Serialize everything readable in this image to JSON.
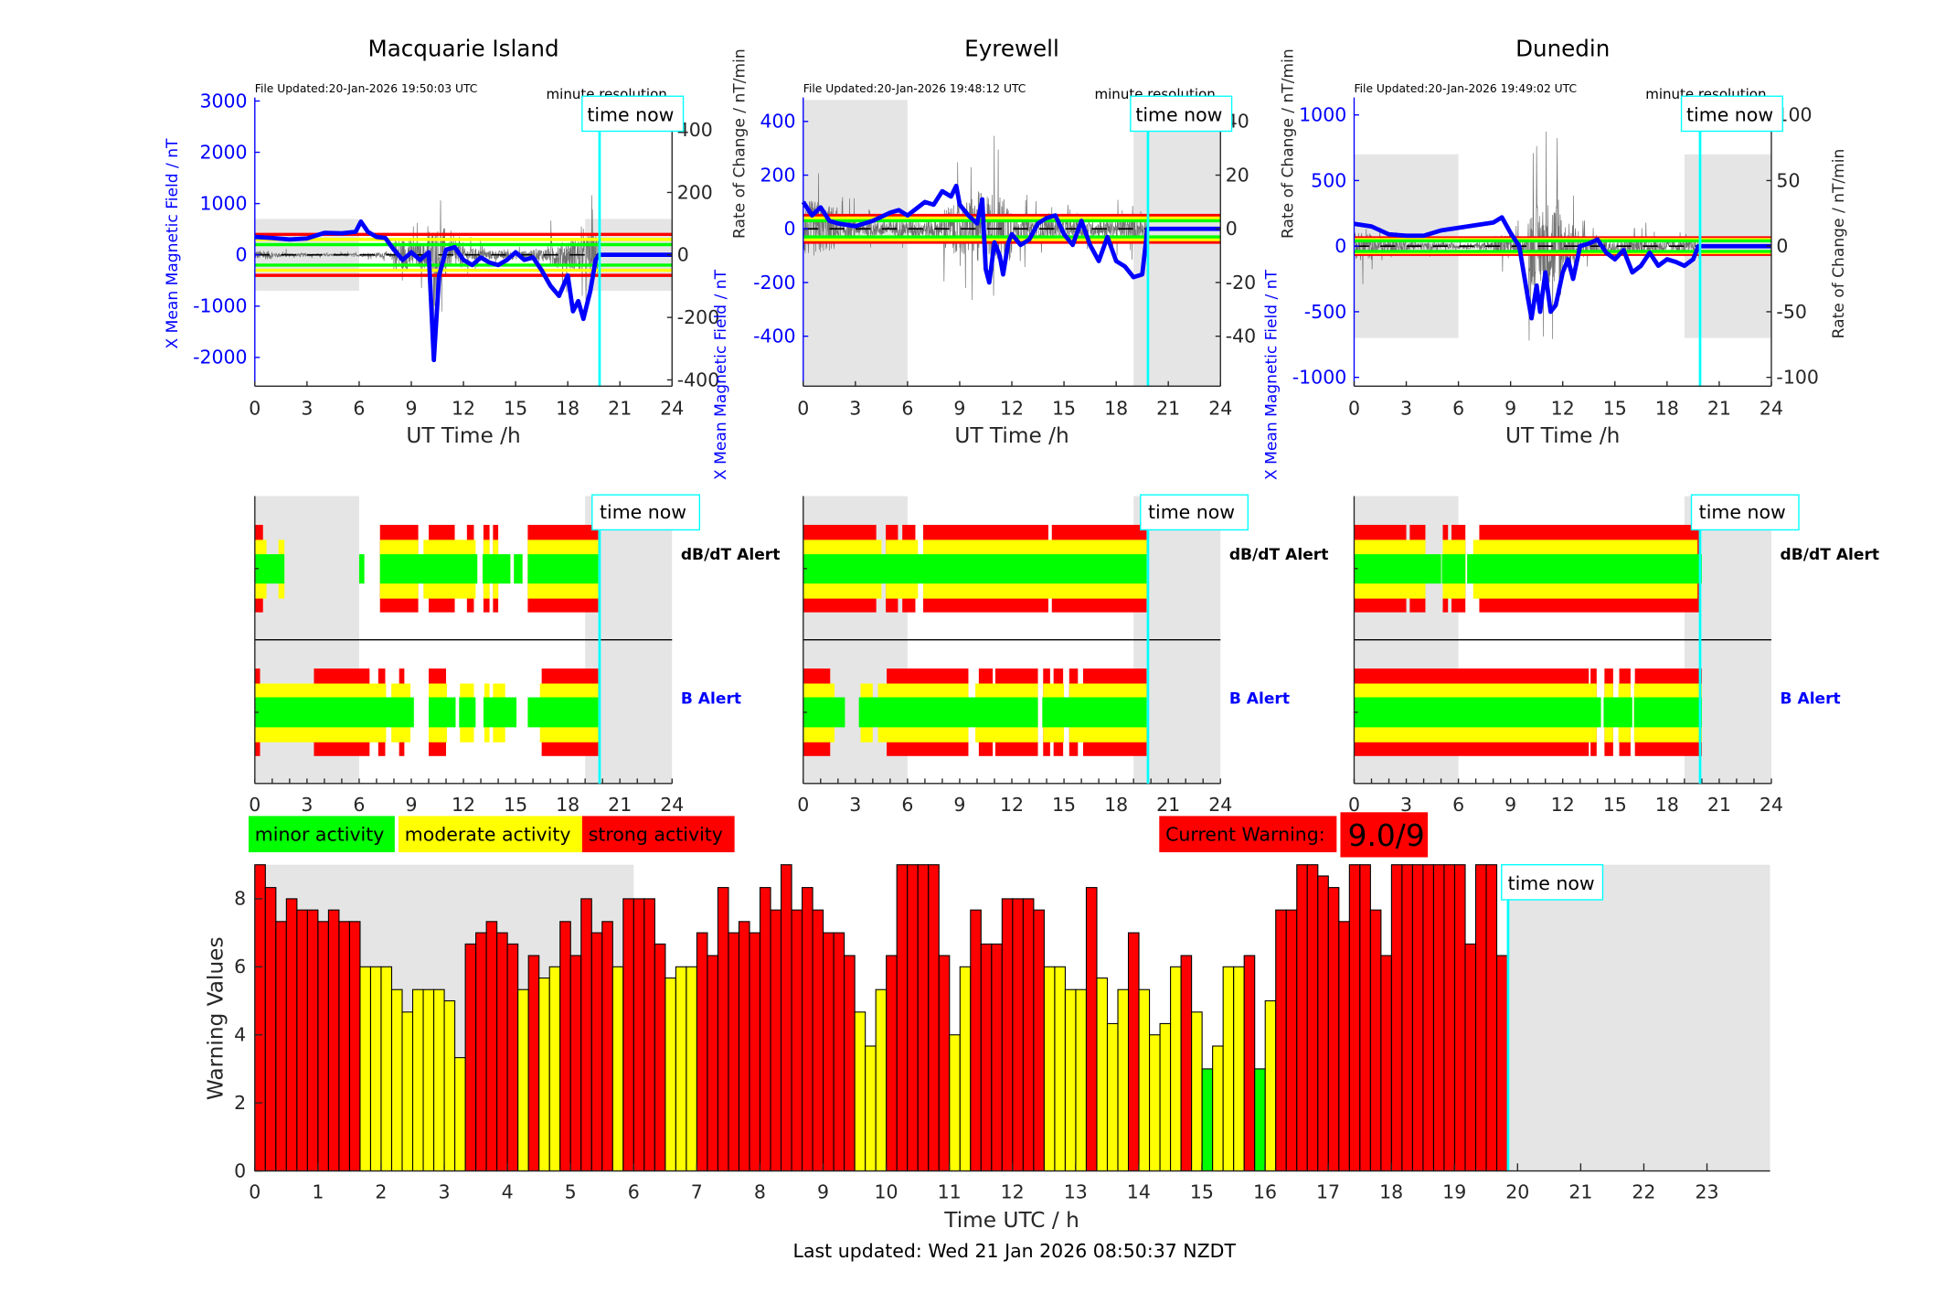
{
  "colors": {
    "minor": "#00ff00",
    "moderate": "#ffff00",
    "strong": "#ff0000",
    "field": "#0000ff",
    "time_now": "#00ffff",
    "night": "#e5e5e5",
    "dbdt": "#707070"
  },
  "x_ticks": [
    "0",
    "3",
    "6",
    "9",
    "12",
    "15",
    "18",
    "21",
    "24"
  ],
  "alert_labels": {
    "dbdt": "dB/dT Alert",
    "b": "B Alert"
  },
  "stations": [
    {
      "name": "Macquarie Island",
      "file_updated": "File Updated:20-Jan-2026 19:50:03 UTC",
      "resolution": "minute resolution",
      "time_now_label": "time now",
      "left_label": "X Mean Magnetic Field / nT",
      "right_label": "Rate of Change / nT/min",
      "xlabel": "UT Time /h",
      "left_range": [
        -2560,
        3020
      ],
      "right_range": [
        -420,
        496
      ],
      "left_ticks": [
        "-2000",
        "-1000",
        "0",
        "1000",
        "2000",
        "3000"
      ],
      "right_ticks": [
        "-400",
        "-200",
        "0",
        "200",
        "400"
      ],
      "thresholds": {
        "red": 400,
        "yellow": 300,
        "green": 200
      },
      "night_shade": [
        [
          0,
          6
        ],
        [
          19,
          24
        ]
      ],
      "shade_limit": 700,
      "time_now": 19.83,
      "x_field": [
        [
          0,
          350
        ],
        [
          1,
          330
        ],
        [
          2,
          300
        ],
        [
          3,
          320
        ],
        [
          4,
          430
        ],
        [
          5,
          420
        ],
        [
          5.8,
          450
        ],
        [
          6.1,
          650
        ],
        [
          6.5,
          450
        ],
        [
          7,
          350
        ],
        [
          7.5,
          330
        ],
        [
          8,
          100
        ],
        [
          8.5,
          -100
        ],
        [
          9,
          50
        ],
        [
          9.5,
          -100
        ],
        [
          10,
          50
        ],
        [
          10.3,
          -2050
        ],
        [
          10.6,
          -400
        ],
        [
          11,
          100
        ],
        [
          11.5,
          150
        ],
        [
          12,
          -100
        ],
        [
          12.5,
          -200
        ],
        [
          13,
          -50
        ],
        [
          13.5,
          -150
        ],
        [
          14,
          -200
        ],
        [
          14.5,
          -100
        ],
        [
          15,
          50
        ],
        [
          15.5,
          -100
        ],
        [
          16,
          -50
        ],
        [
          16.5,
          -300
        ],
        [
          17,
          -600
        ],
        [
          17.5,
          -800
        ],
        [
          18,
          -400
        ],
        [
          18.3,
          -1100
        ],
        [
          18.6,
          -900
        ],
        [
          18.9,
          -1250
        ],
        [
          19.3,
          -700
        ],
        [
          19.6,
          -100
        ],
        [
          19.8,
          0
        ],
        [
          24,
          0
        ]
      ],
      "dbdt_envelope": [
        40,
        20,
        15,
        12,
        12,
        12,
        15,
        20,
        150,
        120,
        250,
        120,
        60,
        40,
        40,
        40,
        60,
        120,
        150,
        200
      ],
      "dbdt_alert": {
        "red": [
          [
            0,
            0.47
          ],
          [
            7.2,
            9.4
          ],
          [
            10,
            11.5
          ],
          [
            12.2,
            12.6
          ],
          [
            13.15,
            13.5
          ],
          [
            13.7,
            14
          ],
          [
            15.7,
            19.75
          ]
        ],
        "yellow": [
          [
            0,
            0.67
          ],
          [
            1.36,
            1.7
          ],
          [
            7.2,
            9.4
          ],
          [
            9.7,
            12.7
          ],
          [
            13.15,
            13.5
          ],
          [
            13.7,
            14
          ],
          [
            15.7,
            19.75
          ]
        ],
        "green": [
          [
            0,
            1.7
          ],
          [
            6,
            6.3
          ],
          [
            7.2,
            12.8
          ],
          [
            13.1,
            14.7
          ],
          [
            14.9,
            15.4
          ],
          [
            15.7,
            19.75
          ]
        ]
      },
      "b_alert": {
        "red": [
          [
            0,
            0.3
          ],
          [
            3.4,
            6.6
          ],
          [
            7.1,
            7.5
          ],
          [
            8.3,
            8.6
          ],
          [
            10,
            11
          ],
          [
            16.5,
            19.75
          ]
        ],
        "yellow": [
          [
            0,
            7.55
          ],
          [
            7.85,
            8.95
          ],
          [
            10,
            11.05
          ],
          [
            11.8,
            12.6
          ],
          [
            13.2,
            13.5
          ],
          [
            13.7,
            14.4
          ],
          [
            16.4,
            19.75
          ]
        ],
        "green": [
          [
            0,
            9.15
          ],
          [
            10,
            11.55
          ],
          [
            11.75,
            12.7
          ],
          [
            13.15,
            15.05
          ],
          [
            15.7,
            19.75
          ]
        ]
      }
    },
    {
      "name": "Eyrewell",
      "file_updated": "File Updated:20-Jan-2026 19:48:12 UTC",
      "resolution": "minute resolution",
      "time_now_label": "time now",
      "left_label": "X Mean Magnetic Field / nT",
      "right_label": "Rate of Change / nT/min",
      "xlabel": "UT Time /h",
      "left_range": [
        -586,
        480
      ],
      "right_range": [
        -58.6,
        48
      ],
      "left_ticks": [
        "-400",
        "-200",
        "0",
        "200",
        "400"
      ],
      "right_ticks": [
        "-40",
        "-20",
        "0",
        "20",
        "40"
      ],
      "thresholds": {
        "red": 50,
        "yellow": 40,
        "green": 30
      },
      "night_shade": [
        [
          0,
          6
        ],
        [
          19,
          24
        ]
      ],
      "shade_limit": null,
      "time_now": 19.83,
      "x_field": [
        [
          0,
          100
        ],
        [
          0.5,
          50
        ],
        [
          1,
          80
        ],
        [
          1.5,
          30
        ],
        [
          2,
          20
        ],
        [
          3,
          10
        ],
        [
          4,
          30
        ],
        [
          5,
          60
        ],
        [
          5.5,
          70
        ],
        [
          6,
          50
        ],
        [
          7,
          100
        ],
        [
          7.5,
          90
        ],
        [
          8,
          140
        ],
        [
          8.5,
          120
        ],
        [
          8.8,
          160
        ],
        [
          9,
          90
        ],
        [
          9.5,
          50
        ],
        [
          10,
          20
        ],
        [
          10.3,
          110
        ],
        [
          10.5,
          -150
        ],
        [
          10.7,
          -200
        ],
        [
          11,
          -50
        ],
        [
          11.3,
          -100
        ],
        [
          11.5,
          -170
        ],
        [
          11.8,
          -50
        ],
        [
          12,
          -20
        ],
        [
          12.5,
          -60
        ],
        [
          13,
          -40
        ],
        [
          13.5,
          20
        ],
        [
          14,
          40
        ],
        [
          14.5,
          50
        ],
        [
          15,
          -20
        ],
        [
          15.5,
          -60
        ],
        [
          16,
          30
        ],
        [
          16.5,
          -60
        ],
        [
          17,
          -120
        ],
        [
          17.5,
          -30
        ],
        [
          18,
          -120
        ],
        [
          18.5,
          -140
        ],
        [
          19,
          -180
        ],
        [
          19.5,
          -170
        ],
        [
          19.8,
          0
        ],
        [
          24,
          0
        ]
      ],
      "dbdt_envelope": [
        30,
        25,
        12,
        8,
        8,
        8,
        10,
        10,
        25,
        30,
        40,
        35,
        15,
        12,
        10,
        10,
        8,
        10,
        12,
        12
      ],
      "dbdt_alert": {
        "red": [
          [
            0,
            4.2
          ],
          [
            4.75,
            5.45
          ],
          [
            5.7,
            6.45
          ],
          [
            6.9,
            14.1
          ],
          [
            14.3,
            19.75
          ]
        ],
        "yellow": [
          [
            0,
            4.5
          ],
          [
            4.75,
            6.6
          ],
          [
            6.9,
            19.75
          ]
        ],
        "green": [
          [
            0,
            19.75
          ]
        ]
      },
      "b_alert": {
        "red": [
          [
            0,
            1.55
          ],
          [
            4.8,
            9.5
          ],
          [
            10.1,
            10.9
          ],
          [
            11.05,
            13.5
          ],
          [
            13.8,
            14.2
          ],
          [
            14.4,
            14.95
          ],
          [
            15.3,
            15.8
          ],
          [
            16.1,
            19.75
          ]
        ],
        "yellow": [
          [
            0,
            1.8
          ],
          [
            3.3,
            4
          ],
          [
            4.3,
            9.5
          ],
          [
            9.9,
            13.5
          ],
          [
            13.8,
            15
          ],
          [
            15.3,
            19.75
          ]
        ],
        "green": [
          [
            0,
            2.4
          ],
          [
            3.2,
            13.5
          ],
          [
            13.75,
            19.75
          ]
        ]
      }
    },
    {
      "name": "Dunedin",
      "file_updated": "File Updated:20-Jan-2026 19:49:02 UTC",
      "resolution": "minute resolution",
      "time_now_label": "time now",
      "left_label": "X Mean Magnetic Field / nT",
      "right_label": "Rate of Change / nT/min",
      "xlabel": "UT Time /h",
      "left_range": [
        -1067,
        1114
      ],
      "right_range": [
        -106.7,
        111.4
      ],
      "left_ticks": [
        "-1000",
        "-500",
        "0",
        "500",
        "1000"
      ],
      "right_ticks": [
        "-100",
        "-50",
        "0",
        "50",
        "100"
      ],
      "thresholds": {
        "red": 63,
        "yellow": 50,
        "green": 40
      },
      "night_shade": [
        [
          0,
          6
        ],
        [
          19,
          24
        ]
      ],
      "shade_limit": 700,
      "time_now": 19.9,
      "x_field": [
        [
          0,
          170
        ],
        [
          1,
          150
        ],
        [
          2,
          90
        ],
        [
          3,
          80
        ],
        [
          4,
          80
        ],
        [
          5,
          120
        ],
        [
          6,
          140
        ],
        [
          7,
          160
        ],
        [
          8,
          180
        ],
        [
          8.5,
          220
        ],
        [
          9,
          100
        ],
        [
          9.5,
          0
        ],
        [
          10,
          -400
        ],
        [
          10.2,
          -550
        ],
        [
          10.5,
          -300
        ],
        [
          10.7,
          -500
        ],
        [
          11,
          -200
        ],
        [
          11.3,
          -500
        ],
        [
          11.6,
          -450
        ],
        [
          12,
          -200
        ],
        [
          12.3,
          -100
        ],
        [
          12.6,
          -250
        ],
        [
          13,
          0
        ],
        [
          13.5,
          20
        ],
        [
          14,
          50
        ],
        [
          14.5,
          -50
        ],
        [
          15,
          -100
        ],
        [
          15.5,
          -30
        ],
        [
          16,
          -200
        ],
        [
          16.5,
          -150
        ],
        [
          17,
          -50
        ],
        [
          17.5,
          -150
        ],
        [
          18,
          -100
        ],
        [
          18.5,
          -120
        ],
        [
          19,
          -150
        ],
        [
          19.5,
          -100
        ],
        [
          19.8,
          0
        ],
        [
          24,
          0
        ]
      ],
      "dbdt_envelope": [
        30,
        20,
        15,
        8,
        8,
        6,
        6,
        8,
        25,
        20,
        90,
        100,
        50,
        25,
        15,
        20,
        20,
        15,
        12,
        10
      ],
      "dbdt_alert": {
        "red": [
          [
            0,
            3
          ],
          [
            3.2,
            4.1
          ],
          [
            5.1,
            5.4
          ],
          [
            5.6,
            6.4
          ],
          [
            7.2,
            19.95
          ]
        ],
        "yellow": [
          [
            0,
            4.1
          ],
          [
            5.1,
            6.4
          ],
          [
            6.85,
            19.75
          ]
        ],
        "green": [
          [
            0,
            5
          ],
          [
            5.05,
            6.4
          ],
          [
            6.5,
            20
          ]
        ]
      },
      "b_alert": {
        "red": [
          [
            0,
            13.5
          ],
          [
            13.6,
            13.95
          ],
          [
            14.4,
            14.9
          ],
          [
            15.25,
            15.9
          ],
          [
            16.15,
            20
          ]
        ],
        "yellow": [
          [
            0,
            13.95
          ],
          [
            14.4,
            14.9
          ],
          [
            15.2,
            15.9
          ],
          [
            16.1,
            20
          ]
        ],
        "green": [
          [
            0,
            14.2
          ],
          [
            14.35,
            16
          ],
          [
            16.1,
            20
          ]
        ]
      }
    }
  ],
  "legend": {
    "minor": "minor activity",
    "moderate": "moderate activity",
    "strong": "strong activity"
  },
  "current_warning": {
    "label": "Current Warning:",
    "value": "9.0/9"
  },
  "chart_data": {
    "type": "bar",
    "title": "",
    "xlabel": "Time UTC / h",
    "ylabel": "Warning Values",
    "xlim": [
      0,
      24
    ],
    "ylim": [
      0,
      9
    ],
    "x_ticks": [
      "0",
      "1",
      "2",
      "3",
      "4",
      "5",
      "6",
      "7",
      "8",
      "9",
      "10",
      "11",
      "12",
      "13",
      "14",
      "15",
      "16",
      "17",
      "18",
      "19",
      "20",
      "21",
      "22",
      "23"
    ],
    "y_ticks": [
      "0",
      "2",
      "4",
      "6",
      "8"
    ],
    "bin_start_hours": 0,
    "bin_width_hours": 0.1667,
    "color_rule": {
      "minor_max": 3,
      "moderate_max": 6
    },
    "values": [
      9,
      8.33,
      7.33,
      8,
      7.67,
      7.67,
      7.33,
      7.67,
      7.33,
      7.33,
      6,
      6,
      6,
      5.33,
      4.67,
      5.33,
      5.33,
      5.33,
      5,
      3.33,
      6.67,
      7,
      7.33,
      7,
      6.67,
      5.33,
      6.33,
      5.67,
      6,
      7.33,
      6.33,
      8,
      7,
      7.33,
      6,
      8,
      8,
      8,
      6.67,
      5.67,
      6,
      6,
      7,
      6.33,
      8.33,
      7,
      7.33,
      7,
      8.33,
      7.67,
      9,
      7.67,
      8.33,
      7.67,
      7,
      7,
      6.33,
      4.67,
      3.67,
      5.33,
      6.33,
      9,
      9,
      9,
      9,
      6.33,
      4,
      6,
      7.67,
      6.67,
      6.67,
      8,
      8,
      8,
      7.67,
      6,
      6,
      5.33,
      5.33,
      8.33,
      5.67,
      4.33,
      5.33,
      7,
      5.33,
      4,
      4.33,
      6,
      6.33,
      4.67,
      3,
      3.67,
      6,
      6,
      6.33,
      3,
      5,
      7.67,
      7.67,
      9,
      9,
      8.67,
      8.33,
      7.33,
      9,
      9,
      7.67,
      6.33,
      9,
      9,
      9,
      9,
      9,
      9,
      9,
      6.67,
      9,
      9,
      6.33
    ],
    "night_shade": [
      [
        0,
        6
      ],
      [
        19.85,
        24
      ]
    ],
    "time_now": 19.85,
    "time_now_label": "time now",
    "grid": false
  },
  "footer": "Last updated: Wed 21 Jan 2026 08:50:37 NZDT"
}
